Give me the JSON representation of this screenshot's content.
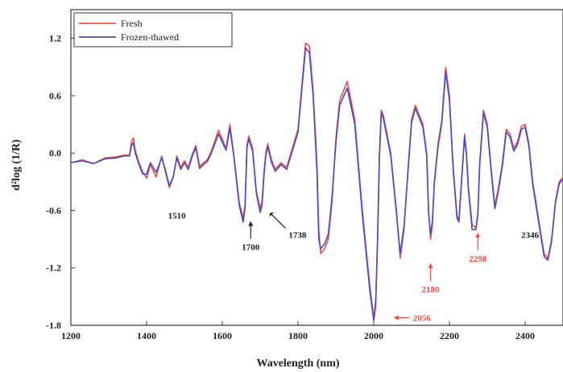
{
  "chart_data": {
    "type": "line",
    "xlabel": "Wavelength (nm)",
    "ylabel": "d²log (1/R)",
    "xlim": [
      1200,
      2500
    ],
    "ylim": [
      -1.8,
      1.5
    ],
    "xticks": [
      1200,
      1400,
      1600,
      1800,
      2000,
      2200,
      2400
    ],
    "yticks": [
      1.2,
      0.6,
      0.0,
      -0.6,
      -1.2,
      -1.8
    ],
    "ytick_labels": [
      "1.2",
      "0.6",
      "0.0",
      "-0.6",
      "-1.2",
      "-1.8"
    ],
    "legend_position": "top-left",
    "series": [
      {
        "name": "Fresh",
        "color": "#e8504a",
        "x": [
          1200,
          1230,
          1260,
          1290,
          1320,
          1340,
          1355,
          1360,
          1365,
          1370,
          1380,
          1390,
          1400,
          1410,
          1425,
          1440,
          1450,
          1460,
          1470,
          1480,
          1490,
          1500,
          1510,
          1520,
          1530,
          1540,
          1550,
          1560,
          1570,
          1590,
          1610,
          1620,
          1630,
          1645,
          1655,
          1660,
          1665,
          1670,
          1680,
          1690,
          1700,
          1705,
          1710,
          1715,
          1720,
          1730,
          1740,
          1755,
          1770,
          1785,
          1800,
          1810,
          1820,
          1830,
          1840,
          1850,
          1855,
          1860,
          1870,
          1880,
          1890,
          1900,
          1910,
          1930,
          1950,
          1970,
          1990,
          2000,
          2005,
          2010,
          2015,
          2020,
          2025,
          2030,
          2035,
          2040,
          2045,
          2050,
          2060,
          2070,
          2080,
          2090,
          2100,
          2110,
          2120,
          2130,
          2140,
          2145,
          2150,
          2155,
          2160,
          2170,
          2180,
          2190,
          2200,
          2210,
          2220,
          2225,
          2230,
          2240,
          2245,
          2250,
          2260,
          2270,
          2275,
          2280,
          2290,
          2300,
          2310,
          2320,
          2330,
          2340,
          2350,
          2360,
          2370,
          2380,
          2390,
          2400,
          2410,
          2420,
          2430,
          2440,
          2450,
          2460,
          2470,
          2480,
          2490,
          2500
        ],
        "y": [
          -0.1,
          -0.07,
          -0.11,
          -0.05,
          -0.04,
          -0.02,
          -0.02,
          0.12,
          0.16,
          0.03,
          -0.1,
          -0.2,
          -0.26,
          -0.12,
          -0.25,
          -0.03,
          -0.2,
          -0.36,
          -0.26,
          -0.03,
          -0.15,
          -0.08,
          -0.15,
          -0.02,
          0.08,
          -0.14,
          -0.1,
          -0.07,
          0.01,
          0.24,
          0.05,
          0.3,
          0.0,
          -0.52,
          -0.68,
          -0.55,
          0.08,
          0.18,
          0.05,
          -0.4,
          -0.58,
          -0.5,
          -0.2,
          0.0,
          0.1,
          -0.07,
          -0.17,
          -0.1,
          -0.15,
          0.05,
          0.25,
          0.7,
          1.15,
          1.12,
          0.65,
          -0.1,
          -0.8,
          -1.05,
          -1.0,
          -0.9,
          -0.5,
          0.15,
          0.55,
          0.75,
          0.35,
          -0.6,
          -1.4,
          -1.72,
          -1.55,
          -0.9,
          0.0,
          0.45,
          0.4,
          0.3,
          0.2,
          0.1,
          0.0,
          -0.2,
          -0.6,
          -1.1,
          -0.8,
          -0.2,
          0.35,
          0.5,
          0.4,
          0.3,
          0.0,
          -0.6,
          -0.9,
          -0.75,
          -0.3,
          0.1,
          0.35,
          0.9,
          0.6,
          -0.15,
          -0.65,
          -0.7,
          -0.4,
          0.2,
          0.0,
          -0.35,
          -0.75,
          -0.78,
          -0.62,
          -0.1,
          0.45,
          0.3,
          -0.15,
          -0.55,
          -0.35,
          -0.1,
          0.25,
          0.2,
          0.05,
          0.12,
          0.28,
          0.3,
          0.1,
          -0.3,
          -0.55,
          -0.8,
          -1.05,
          -1.1,
          -0.9,
          -0.5,
          -0.3,
          -0.25
        ]
      },
      {
        "name": "Frozen-thawed",
        "color": "#4a4cc0",
        "x": [
          1200,
          1230,
          1260,
          1290,
          1320,
          1340,
          1355,
          1360,
          1365,
          1370,
          1380,
          1390,
          1400,
          1410,
          1425,
          1440,
          1450,
          1460,
          1470,
          1480,
          1490,
          1500,
          1510,
          1520,
          1530,
          1540,
          1550,
          1560,
          1570,
          1590,
          1610,
          1620,
          1630,
          1645,
          1655,
          1660,
          1665,
          1670,
          1680,
          1690,
          1700,
          1705,
          1710,
          1715,
          1720,
          1730,
          1740,
          1755,
          1770,
          1785,
          1800,
          1810,
          1820,
          1830,
          1840,
          1850,
          1855,
          1860,
          1870,
          1880,
          1890,
          1900,
          1910,
          1930,
          1950,
          1970,
          1990,
          2000,
          2005,
          2010,
          2015,
          2020,
          2025,
          2030,
          2035,
          2040,
          2045,
          2050,
          2060,
          2070,
          2080,
          2090,
          2100,
          2110,
          2120,
          2130,
          2140,
          2145,
          2150,
          2155,
          2160,
          2170,
          2180,
          2190,
          2200,
          2210,
          2220,
          2225,
          2230,
          2240,
          2245,
          2250,
          2260,
          2270,
          2275,
          2280,
          2290,
          2300,
          2310,
          2320,
          2330,
          2340,
          2350,
          2360,
          2370,
          2380,
          2390,
          2400,
          2410,
          2420,
          2430,
          2440,
          2450,
          2460,
          2470,
          2480,
          2490,
          2500
        ],
        "y": [
          -0.1,
          -0.08,
          -0.11,
          -0.06,
          -0.05,
          -0.03,
          -0.03,
          0.08,
          0.11,
          0.0,
          -0.12,
          -0.22,
          -0.22,
          -0.1,
          -0.2,
          -0.05,
          -0.18,
          -0.34,
          -0.25,
          -0.05,
          -0.17,
          -0.1,
          -0.17,
          -0.04,
          0.06,
          -0.16,
          -0.12,
          -0.09,
          -0.01,
          0.2,
          0.03,
          0.26,
          -0.02,
          -0.55,
          -0.72,
          -0.58,
          0.05,
          0.15,
          0.02,
          -0.42,
          -0.62,
          -0.54,
          -0.24,
          -0.03,
          0.07,
          -0.1,
          -0.19,
          -0.12,
          -0.17,
          0.02,
          0.22,
          0.66,
          1.1,
          1.05,
          0.6,
          -0.2,
          -0.9,
          -1.0,
          -0.95,
          -0.85,
          -0.45,
          0.1,
          0.5,
          0.68,
          0.3,
          -0.65,
          -1.45,
          -1.75,
          -1.6,
          -0.95,
          -0.05,
          0.42,
          0.37,
          0.27,
          0.17,
          0.07,
          -0.03,
          -0.23,
          -0.63,
          -1.05,
          -0.76,
          -0.22,
          0.32,
          0.47,
          0.37,
          0.27,
          -0.03,
          -0.62,
          -0.85,
          -0.7,
          -0.32,
          0.07,
          0.32,
          0.85,
          0.55,
          -0.18,
          -0.68,
          -0.72,
          -0.42,
          0.17,
          -0.03,
          -0.38,
          -0.8,
          -0.8,
          -0.64,
          -0.12,
          0.42,
          0.27,
          -0.18,
          -0.58,
          -0.38,
          -0.13,
          0.22,
          0.17,
          0.02,
          0.09,
          0.25,
          0.27,
          0.07,
          -0.33,
          -0.58,
          -0.83,
          -1.08,
          -1.12,
          -0.92,
          -0.52,
          -0.32,
          -0.27
        ]
      }
    ],
    "annotations": [
      {
        "text": "1510",
        "x": 1480,
        "y": -0.5,
        "color": "#222222",
        "arrow": false
      },
      {
        "text": "1700",
        "x": 1675,
        "y": -0.66,
        "color": "#222222",
        "arrow": "up"
      },
      {
        "text": "1738",
        "x": 1720,
        "y": -0.6,
        "color": "#222222",
        "arrow": "diag"
      },
      {
        "text": "2056",
        "x": 2040,
        "y": -1.72,
        "color": "#e8504a",
        "arrow": "left"
      },
      {
        "text": "2180",
        "x": 2150,
        "y": -1.1,
        "color": "#e8504a",
        "arrow": "up"
      },
      {
        "text": "2298",
        "x": 2275,
        "y": -0.78,
        "color": "#e8504a",
        "arrow": "up"
      },
      {
        "text": "2346",
        "x": 2330,
        "y": -0.55,
        "color": "#222222",
        "arrow": false
      }
    ]
  }
}
